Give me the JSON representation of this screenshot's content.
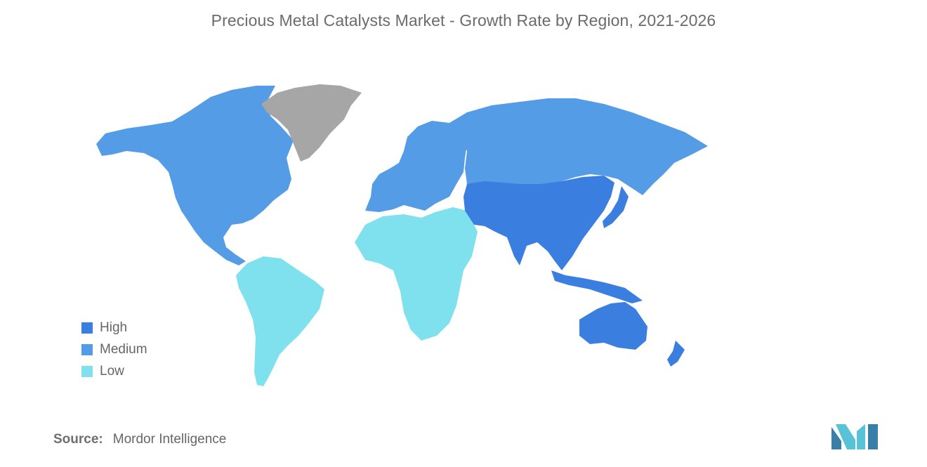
{
  "title": "Precious Metal Catalysts Market - Growth Rate by Region, 2021-2026",
  "colors": {
    "high": "#3a7fe0",
    "medium": "#559ce6",
    "low": "#7fe1ee",
    "no_data": "#a6a6a6",
    "logo_dark": "#3a7fa8",
    "logo_light": "#58c2d6"
  },
  "legend": [
    {
      "label": "High",
      "level": "high"
    },
    {
      "label": "Medium",
      "level": "medium"
    },
    {
      "label": "Low",
      "level": "low"
    }
  ],
  "regions": {
    "north_america": "medium",
    "europe": "medium",
    "russia_central_asia": "medium",
    "asia_pacific": "high",
    "oceania": "high",
    "south_america": "low",
    "middle_east_africa": "low",
    "greenland": "no_data"
  },
  "source": {
    "label": "Source:",
    "value": "Mordor Intelligence"
  }
}
